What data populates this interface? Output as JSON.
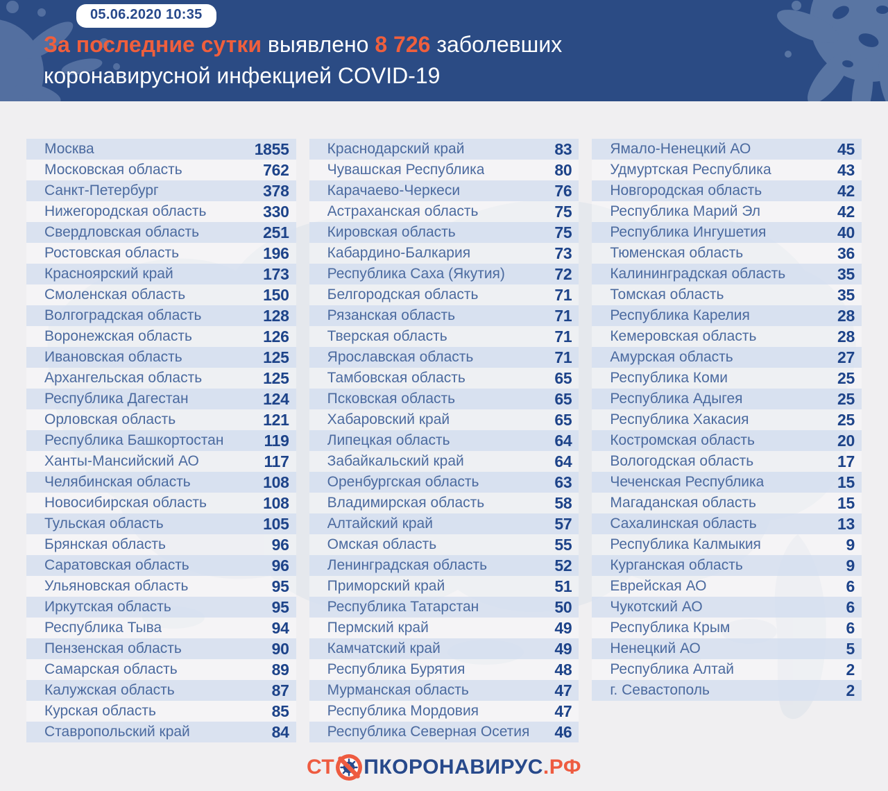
{
  "header": {
    "badge": "05.06.2020 10:35",
    "title_line1": [
      {
        "text": "За последние сутки",
        "style": "accent"
      },
      {
        "text": " выявлено ",
        "style": "plain"
      },
      {
        "text": "8 726",
        "style": "accent"
      },
      {
        "text": " заболевших",
        "style": "plain"
      }
    ],
    "title_line2": [
      {
        "text": "коронавирусной инфекцией COVID-19",
        "style": "plain"
      }
    ]
  },
  "chart_data": {
    "type": "table",
    "title": "За последние сутки выявлено 8 726 заболевших коронавирусной инфекцией COVID-19",
    "timestamp": "05.06.2020 10:35",
    "total_new_cases": "8 726",
    "column_sizes": [
      29,
      29,
      27
    ],
    "regions": [
      {
        "name": "Москва",
        "value": 1855
      },
      {
        "name": "Московская область",
        "value": 762
      },
      {
        "name": "Санкт-Петербург",
        "value": 378
      },
      {
        "name": "Нижегородская область",
        "value": 330
      },
      {
        "name": "Свердловская область",
        "value": 251
      },
      {
        "name": "Ростовская область",
        "value": 196
      },
      {
        "name": "Красноярский край",
        "value": 173
      },
      {
        "name": "Смоленская область",
        "value": 150
      },
      {
        "name": "Волгоградская область",
        "value": 128
      },
      {
        "name": "Воронежская область",
        "value": 126
      },
      {
        "name": "Ивановская область",
        "value": 125
      },
      {
        "name": "Архангельская область",
        "value": 125
      },
      {
        "name": "Республика Дагестан",
        "value": 124
      },
      {
        "name": "Орловская область",
        "value": 121
      },
      {
        "name": "Республика Башкортостан",
        "value": 119
      },
      {
        "name": "Ханты-Мансийский АО",
        "value": 117
      },
      {
        "name": "Челябинская область",
        "value": 108
      },
      {
        "name": "Новосибирская область",
        "value": 108
      },
      {
        "name": "Тульская область",
        "value": 105
      },
      {
        "name": "Брянская область",
        "value": 96
      },
      {
        "name": "Саратовская область",
        "value": 96
      },
      {
        "name": "Ульяновская область",
        "value": 95
      },
      {
        "name": "Иркутская область",
        "value": 95
      },
      {
        "name": "Республика Тыва",
        "value": 94
      },
      {
        "name": "Пензенская область",
        "value": 90
      },
      {
        "name": "Самарская область",
        "value": 89
      },
      {
        "name": "Калужская область",
        "value": 87
      },
      {
        "name": "Курская область",
        "value": 85
      },
      {
        "name": "Ставропольский край",
        "value": 84
      },
      {
        "name": "Краснодарский край",
        "value": 83
      },
      {
        "name": "Чувашская Республика",
        "value": 80
      },
      {
        "name": "Карачаево-Черкеси",
        "value": 76
      },
      {
        "name": "Астраханская область",
        "value": 75
      },
      {
        "name": "Кировская область",
        "value": 75
      },
      {
        "name": "Кабардино-Балкария",
        "value": 73
      },
      {
        "name": "Республика Саха (Якутия)",
        "value": 72
      },
      {
        "name": "Белгородская область",
        "value": 71
      },
      {
        "name": "Рязанская область",
        "value": 71
      },
      {
        "name": "Тверская область",
        "value": 71
      },
      {
        "name": "Ярославская область",
        "value": 71
      },
      {
        "name": "Тамбовская область",
        "value": 65
      },
      {
        "name": "Псковская область",
        "value": 65
      },
      {
        "name": "Хабаровский край",
        "value": 65
      },
      {
        "name": "Липецкая область",
        "value": 64
      },
      {
        "name": "Забайкальский край",
        "value": 64
      },
      {
        "name": "Оренбургская область",
        "value": 63
      },
      {
        "name": "Владимирская область",
        "value": 58
      },
      {
        "name": "Алтайский край",
        "value": 57
      },
      {
        "name": "Омская область",
        "value": 55
      },
      {
        "name": "Ленинградская область",
        "value": 52
      },
      {
        "name": "Приморский край",
        "value": 51
      },
      {
        "name": "Республика Татарстан",
        "value": 50
      },
      {
        "name": "Пермский край",
        "value": 49
      },
      {
        "name": "Камчатский край",
        "value": 49
      },
      {
        "name": "Республика Бурятия",
        "value": 48
      },
      {
        "name": "Мурманская область",
        "value": 47
      },
      {
        "name": "Республика Мордовия",
        "value": 47
      },
      {
        "name": "Республика Северная Осетия",
        "value": 46
      },
      {
        "name": "Ямало-Ненецкий АО",
        "value": 45
      },
      {
        "name": "Удмуртская Республика",
        "value": 43
      },
      {
        "name": "Новгородская область",
        "value": 42
      },
      {
        "name": "Республика Марий Эл",
        "value": 42
      },
      {
        "name": "Республика Ингушетия",
        "value": 40
      },
      {
        "name": "Тюменская область",
        "value": 36
      },
      {
        "name": "Калининградская область",
        "value": 35
      },
      {
        "name": "Томская область",
        "value": 35
      },
      {
        "name": "Республика Карелия",
        "value": 28
      },
      {
        "name": "Кемеровская область",
        "value": 28
      },
      {
        "name": "Амурская область",
        "value": 27
      },
      {
        "name": "Республика Коми",
        "value": 25
      },
      {
        "name": "Республика Адыгея",
        "value": 25
      },
      {
        "name": "Республика Хакасия",
        "value": 25
      },
      {
        "name": "Костромская область",
        "value": 20
      },
      {
        "name": "Вологодская область",
        "value": 17
      },
      {
        "name": "Чеченская Республика",
        "value": 15
      },
      {
        "name": "Магаданская область",
        "value": 15
      },
      {
        "name": "Сахалинская область",
        "value": 13
      },
      {
        "name": "Республика Калмыкия",
        "value": 9
      },
      {
        "name": "Курганская область",
        "value": 9
      },
      {
        "name": "Еврейская АО",
        "value": 6
      },
      {
        "name": "Чукотский АО",
        "value": 6
      },
      {
        "name": "Республика Крым",
        "value": 6
      },
      {
        "name": "Ненецкий АО",
        "value": 5
      },
      {
        "name": "Республика Алтай",
        "value": 2
      },
      {
        "name": "г. Севастополь",
        "value": 2
      }
    ]
  },
  "footer": {
    "logo_segments": [
      {
        "text": "СТ",
        "style": "accent"
      },
      {
        "text": "",
        "style": "icon"
      },
      {
        "text": "ПКОРОНАВИРУС",
        "style": "brand"
      },
      {
        "text": ".РФ",
        "style": "accent"
      }
    ]
  },
  "colors": {
    "header_bg": "#2b4b84",
    "accent_orange": "#ef5f3d",
    "region_text": "#4b6a9f",
    "value_text": "#1d4389",
    "stripe": "#dde4f0",
    "page_bg": "#f0eff1",
    "badge_text": "#27498b"
  }
}
